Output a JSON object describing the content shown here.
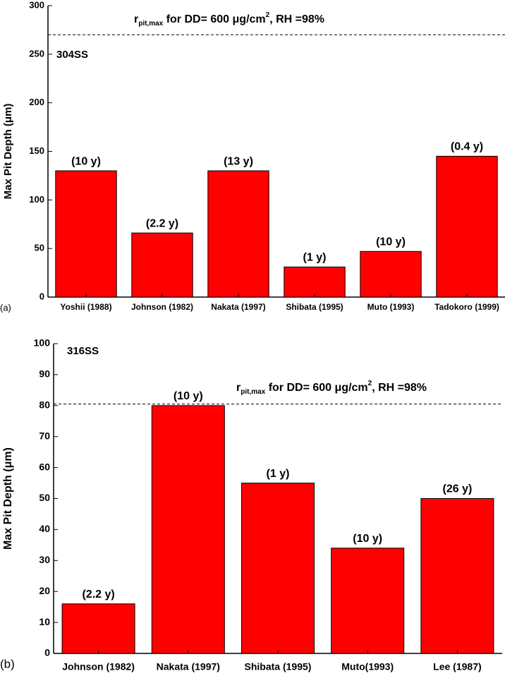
{
  "chart_data": [
    {
      "type": "bar",
      "panel_label": "(a)",
      "series_label": "304SS",
      "ylabel": "Max Pit Depth (μm)",
      "categories": [
        "Yoshii (1988)",
        "Johnson (1982)",
        "Nakata (1997)",
        "Shibata (1995)",
        "Muto (1993)",
        "Tadokoro (1999)"
      ],
      "values": [
        130,
        66,
        130,
        31,
        47,
        145
      ],
      "bar_annotations": [
        "(10 y)",
        "(2.2 y)",
        "(13 y)",
        "(1 y)",
        "(10 y)",
        "(0.4 y)"
      ],
      "color": "#ff0000",
      "ylim": [
        0,
        300
      ],
      "yticks": [
        0,
        50,
        100,
        150,
        200,
        250,
        300
      ],
      "reference_line": {
        "value": 270,
        "label_parts": [
          "r",
          "pit,max",
          " for DD= 600 μg/cm",
          "2",
          ", RH =98%"
        ]
      }
    },
    {
      "type": "bar",
      "panel_label": "(b)",
      "series_label": "316SS",
      "ylabel": "Max Pit Depth (μm)",
      "categories": [
        "Johnson (1982)",
        "Nakata (1997)",
        "Shibata (1995)",
        "Muto(1993)",
        "Lee (1987)"
      ],
      "values": [
        16,
        80,
        55,
        34,
        50
      ],
      "bar_annotations": [
        "(2.2 y)",
        "(10 y)",
        "(1 y)",
        "(10 y)",
        "(26 y)"
      ],
      "color": "#ff0000",
      "ylim": [
        0,
        100
      ],
      "yticks": [
        0,
        10,
        20,
        30,
        40,
        50,
        60,
        70,
        80,
        90,
        100
      ],
      "reference_line": {
        "value": 80.5,
        "label_parts": [
          "r",
          "pit,max",
          " for DD= 600 μg/cm",
          "2",
          ", RH =98%"
        ]
      }
    }
  ]
}
